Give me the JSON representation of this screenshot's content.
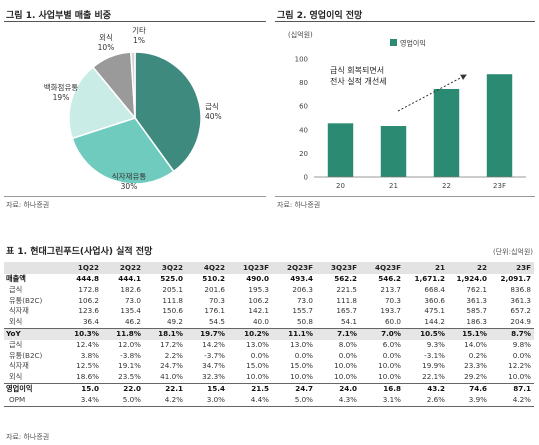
{
  "figure1": {
    "title": "그림 1. 사업부별 매출 비중",
    "source": "자료: 하나증권",
    "colors": [
      "#3e8a7e",
      "#6ecbbd",
      "#c9ece6",
      "#9a9a9a",
      "#d4d4d4"
    ],
    "labels": [
      {
        "name": "급식",
        "pct": "40%"
      },
      {
        "name": "식자재유통",
        "pct": "30%"
      },
      {
        "name": "백화점유통",
        "pct": "19%"
      },
      {
        "name": "외식",
        "pct": "10%"
      },
      {
        "name": "기타",
        "pct": "1%"
      }
    ]
  },
  "figure2": {
    "title": "그림 2. 영업이익 전망",
    "source": "자료: 하나증권",
    "unit": "(십억원)",
    "annotation_line1": "급식 회복되면서",
    "annotation_line2": "전사 실적 개선세",
    "bar_color": "#2b8a72"
  },
  "chart_data": [
    {
      "type": "pie",
      "title": "그림 1. 사업부별 매출 비중",
      "categories": [
        "급식",
        "식자재유통",
        "백화점유통",
        "외식",
        "기타"
      ],
      "values": [
        40,
        30,
        19,
        10,
        1
      ]
    },
    {
      "type": "bar",
      "title": "그림 2. 영업이익 전망",
      "ylabel": "(십억원)",
      "categories": [
        "20",
        "21",
        "22",
        "23F"
      ],
      "series": [
        {
          "name": "영업이익",
          "values": [
            45.5,
            43.2,
            74.6,
            87.1
          ]
        }
      ],
      "ylim": [
        0,
        100
      ],
      "yticks": [
        0,
        20,
        40,
        60,
        80,
        100
      ],
      "grid": false,
      "legend": "top-center"
    }
  ],
  "table1": {
    "title": "표 1. 현대그린푸드(사업사) 실적 전망",
    "unit": "(단위:십억원)",
    "source": "자료: 하나증권",
    "columns": [
      "",
      "1Q22",
      "2Q22",
      "3Q22",
      "4Q22",
      "1Q23F",
      "2Q23F",
      "3Q23F",
      "4Q23F",
      "21",
      "22",
      "23F"
    ],
    "rows": [
      {
        "label": "매출액",
        "style": "bold",
        "values": [
          "444.8",
          "444.1",
          "525.0",
          "510.2",
          "490.0",
          "493.4",
          "562.2",
          "546.2",
          "1,671.2",
          "1,924.0",
          "2,091.7"
        ]
      },
      {
        "label": "급식",
        "style": "sub",
        "values": [
          "172.8",
          "182.6",
          "205.1",
          "201.6",
          "195.3",
          "206.3",
          "221.5",
          "213.7",
          "668.4",
          "762.1",
          "836.8"
        ]
      },
      {
        "label": "유통(B2C)",
        "style": "sub",
        "values": [
          "106.2",
          "73.0",
          "111.8",
          "70.3",
          "106.2",
          "73.0",
          "111.8",
          "70.3",
          "360.6",
          "361.3",
          "361.3"
        ]
      },
      {
        "label": "식자재",
        "style": "sub",
        "values": [
          "123.6",
          "135.4",
          "150.6",
          "176.1",
          "142.1",
          "155.7",
          "165.7",
          "193.7",
          "475.1",
          "585.7",
          "657.2"
        ]
      },
      {
        "label": "외식",
        "style": "sub",
        "values": [
          "36.4",
          "46.2",
          "49.2",
          "54.5",
          "40.0",
          "50.8",
          "54.1",
          "60.0",
          "144.2",
          "186.3",
          "204.9"
        ]
      },
      {
        "label": "YoY",
        "style": "gray-bold",
        "values": [
          "10.3%",
          "11.8%",
          "18.1%",
          "19.7%",
          "10.2%",
          "11.1%",
          "7.1%",
          "7.0%",
          "10.5%",
          "15.1%",
          "8.7%"
        ]
      },
      {
        "label": "급식",
        "style": "sub",
        "values": [
          "12.4%",
          "12.0%",
          "17.2%",
          "14.2%",
          "13.0%",
          "13.0%",
          "8.0%",
          "6.0%",
          "9.3%",
          "14.0%",
          "9.8%"
        ]
      },
      {
        "label": "유통(B2C)",
        "style": "sub",
        "values": [
          "3.8%",
          "-3.8%",
          "2.2%",
          "-3.7%",
          "0.0%",
          "0.0%",
          "0.0%",
          "0.0%",
          "-3.1%",
          "0.2%",
          "0.0%"
        ]
      },
      {
        "label": "식자재",
        "style": "sub",
        "values": [
          "12.5%",
          "19.1%",
          "24.7%",
          "34.7%",
          "15.0%",
          "15.0%",
          "10.0%",
          "10.0%",
          "19.9%",
          "23.3%",
          "12.2%"
        ]
      },
      {
        "label": "외식",
        "style": "sub",
        "values": [
          "18.6%",
          "23.5%",
          "41.0%",
          "32.3%",
          "10.0%",
          "10.0%",
          "10.0%",
          "10.0%",
          "22.1%",
          "29.2%",
          "10.0%"
        ]
      },
      {
        "label": "영업이익",
        "style": "bold-top",
        "values": [
          "15.0",
          "22.0",
          "22.1",
          "15.4",
          "21.5",
          "24.7",
          "24.0",
          "16.8",
          "43.2",
          "74.6",
          "87.1"
        ]
      },
      {
        "label": "OPM",
        "style": "sub-plain",
        "values": [
          "3.4%",
          "5.0%",
          "4.2%",
          "3.0%",
          "4.4%",
          "5.0%",
          "4.3%",
          "3.1%",
          "2.6%",
          "3.9%",
          "4.2%"
        ]
      }
    ]
  }
}
